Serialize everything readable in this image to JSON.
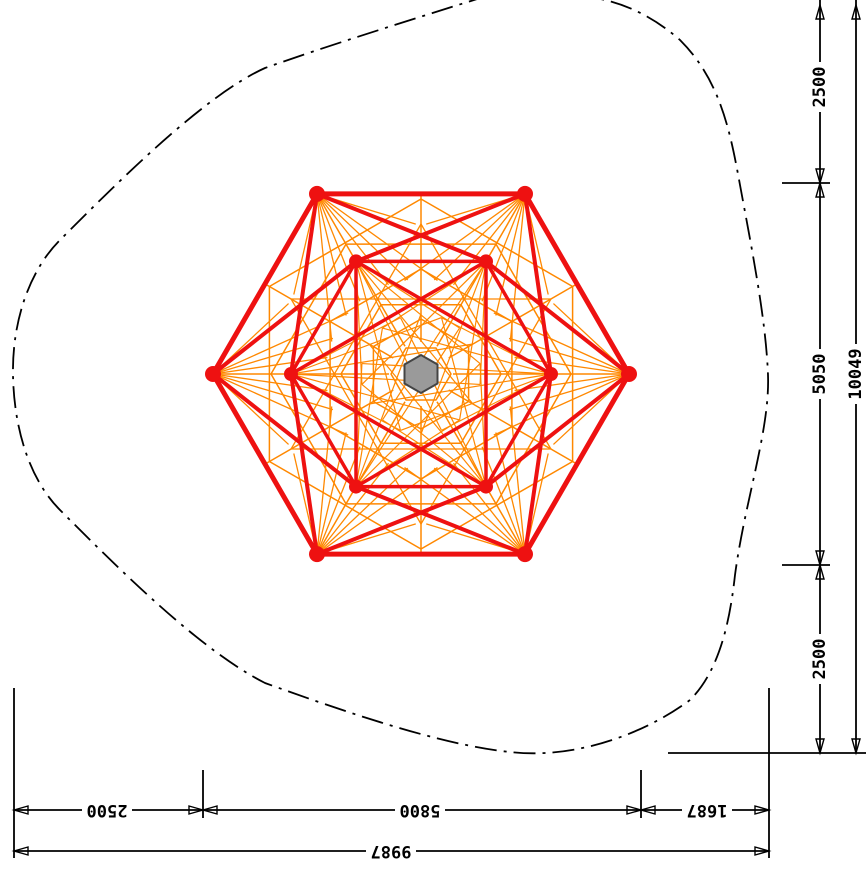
{
  "drawing": {
    "colors": {
      "frame": "#ee1111",
      "net": "#ff8800",
      "center_post": "#9a9a9a",
      "dimension_lines": "#000000",
      "safety_zone": "#000000",
      "background": "#ffffff"
    },
    "dimensions": {
      "bottom_left": "2500",
      "bottom_middle": "5800",
      "bottom_right": "1687",
      "bottom_total": "9987",
      "right_top": "2500",
      "right_middle": "5050",
      "right_bottom": "2500",
      "right_total": "10049"
    }
  }
}
